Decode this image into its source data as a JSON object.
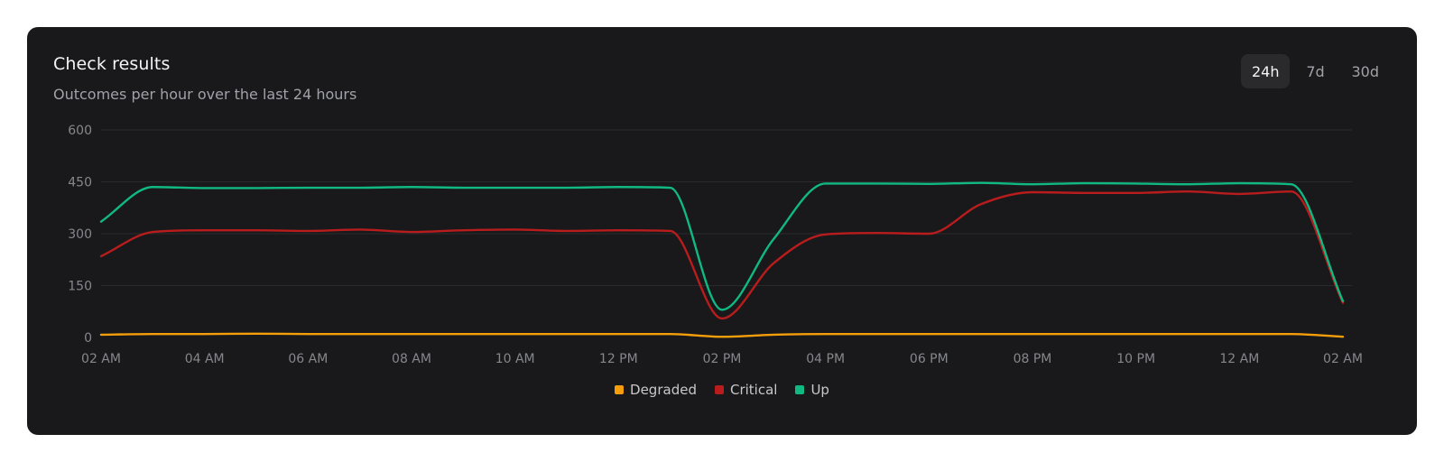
{
  "header": {
    "title": "Check results",
    "subtitle": "Outcomes per hour over the last 24 hours"
  },
  "range_tabs": [
    {
      "label": "24h",
      "active": true
    },
    {
      "label": "7d",
      "active": false
    },
    {
      "label": "30d",
      "active": false
    }
  ],
  "chart_data": {
    "type": "line",
    "title": "Check results",
    "subtitle": "Outcomes per hour over the last 24 hours",
    "xlabel": "",
    "ylabel": "",
    "ylim": [
      0,
      600
    ],
    "yticks": [
      0,
      150,
      300,
      450,
      600
    ],
    "x": [
      "02 AM",
      "03 AM",
      "04 AM",
      "05 AM",
      "06 AM",
      "07 AM",
      "08 AM",
      "09 AM",
      "10 AM",
      "11 AM",
      "12 PM",
      "01 PM",
      "02 PM",
      "03 PM",
      "04 PM",
      "05 PM",
      "06 PM",
      "07 PM",
      "08 PM",
      "09 PM",
      "10 PM",
      "11 PM",
      "12 AM",
      "01 AM",
      "02 AM"
    ],
    "x_tick_labels": [
      "02 AM",
      "04 AM",
      "06 AM",
      "08 AM",
      "10 AM",
      "12 PM",
      "02 PM",
      "04 PM",
      "06 PM",
      "08 PM",
      "10 PM",
      "12 AM",
      "02 AM"
    ],
    "grid": true,
    "legend_position": "bottom-center",
    "series": [
      {
        "name": "Degraded",
        "color": "#f59e0b",
        "values": [
          8,
          10,
          10,
          11,
          10,
          10,
          10,
          10,
          10,
          10,
          10,
          10,
          2,
          8,
          10,
          10,
          10,
          10,
          10,
          10,
          10,
          10,
          10,
          10,
          2
        ]
      },
      {
        "name": "Critical",
        "color": "#b91c1c",
        "values": [
          235,
          305,
          310,
          310,
          308,
          312,
          305,
          310,
          312,
          308,
          310,
          308,
          55,
          215,
          298,
          302,
          300,
          385,
          420,
          418,
          418,
          422,
          415,
          422,
          100
        ]
      },
      {
        "name": "Up",
        "color": "#10b981",
        "values": [
          335,
          435,
          432,
          432,
          433,
          433,
          435,
          433,
          433,
          433,
          435,
          433,
          80,
          285,
          445,
          445,
          444,
          447,
          443,
          446,
          445,
          443,
          446,
          443,
          105
        ]
      }
    ]
  }
}
